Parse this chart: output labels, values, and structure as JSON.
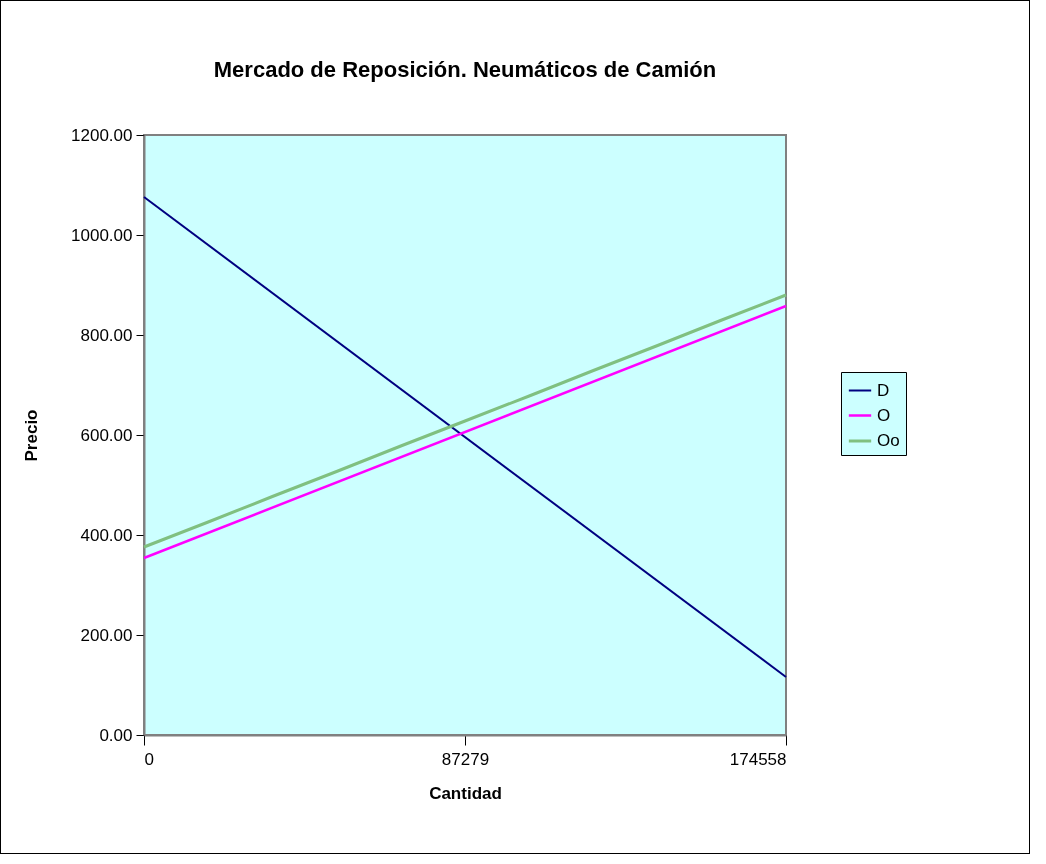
{
  "chart_data": {
    "type": "line",
    "title": "Mercado de Reposición. Neumáticos de Camión",
    "xlabel": "Cantidad",
    "ylabel": "Precio",
    "xlim": [
      0,
      174558
    ],
    "xticks": [
      0,
      87279,
      174558
    ],
    "ylim": [
      0,
      1200
    ],
    "yticks": [
      {
        "value": 0,
        "label": "0.00"
      },
      {
        "value": 200,
        "label": "200.00"
      },
      {
        "value": 400,
        "label": "400.00"
      },
      {
        "value": 600,
        "label": "600.00"
      },
      {
        "value": 800,
        "label": "800.00"
      },
      {
        "value": 1000,
        "label": "1000.00"
      },
      {
        "value": 1200,
        "label": "1200.00"
      }
    ],
    "series": [
      {
        "name": "D",
        "color": "#000080",
        "x": [
          0,
          174558
        ],
        "values": [
          1076,
          116
        ]
      },
      {
        "name": "O",
        "color": "#ff00ff",
        "x": [
          0,
          174558
        ],
        "values": [
          354,
          858
        ]
      },
      {
        "name": "Oo",
        "color": "#80c080",
        "x": [
          0,
          17456,
          34912,
          52367,
          69823,
          87279,
          104735,
          122191,
          139646,
          157102,
          174558
        ],
        "values": [
          376,
          426,
          477,
          527,
          578,
          628,
          678,
          729,
          779,
          830,
          880
        ]
      }
    ],
    "legend": "right",
    "grid": false,
    "marker": "none",
    "line_style": "solid"
  }
}
